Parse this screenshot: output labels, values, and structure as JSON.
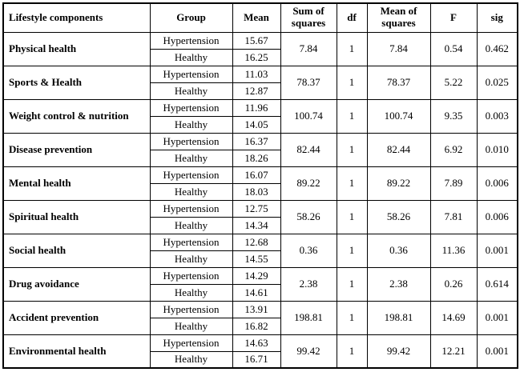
{
  "table": {
    "headers": [
      "Lifestyle components",
      "Group",
      "Mean",
      "Sum of squares",
      "df",
      "Mean of squares",
      "F",
      "sig"
    ],
    "rows": [
      {
        "component": "Physical health",
        "groups": [
          {
            "group": "Hypertension",
            "mean": "15.67"
          },
          {
            "group": "Healthy",
            "mean": "16.25"
          }
        ],
        "sum_of_squares": "7.84",
        "df": "1",
        "mean_of_squares": "7.84",
        "f": "0.54",
        "sig": "0.462"
      },
      {
        "component": "Sports & Health",
        "groups": [
          {
            "group": "Hypertension",
            "mean": "11.03"
          },
          {
            "group": "Healthy",
            "mean": "12.87"
          }
        ],
        "sum_of_squares": "78.37",
        "df": "1",
        "mean_of_squares": "78.37",
        "f": "5.22",
        "sig": "0.025"
      },
      {
        "component": "Weight control & nutrition",
        "groups": [
          {
            "group": "Hypertension",
            "mean": "11.96"
          },
          {
            "group": "Healthy",
            "mean": "14.05"
          }
        ],
        "sum_of_squares": "100.74",
        "df": "1",
        "mean_of_squares": "100.74",
        "f": "9.35",
        "sig": "0.003"
      },
      {
        "component": "Disease prevention",
        "groups": [
          {
            "group": "Hypertension",
            "mean": "16.37"
          },
          {
            "group": "Healthy",
            "mean": "18.26"
          }
        ],
        "sum_of_squares": "82.44",
        "df": "1",
        "mean_of_squares": "82.44",
        "f": "6.92",
        "sig": "0.010"
      },
      {
        "component": "Mental health",
        "groups": [
          {
            "group": "Hypertension",
            "mean": "16.07"
          },
          {
            "group": "Healthy",
            "mean": "18.03"
          }
        ],
        "sum_of_squares": "89.22",
        "df": "1",
        "mean_of_squares": "89.22",
        "f": "7.89",
        "sig": "0.006"
      },
      {
        "component": "Spiritual health",
        "groups": [
          {
            "group": "Hypertension",
            "mean": "12.75"
          },
          {
            "group": "Healthy",
            "mean": "14.34"
          }
        ],
        "sum_of_squares": "58.26",
        "df": "1",
        "mean_of_squares": "58.26",
        "f": "7.81",
        "sig": "0.006"
      },
      {
        "component": "Social health",
        "groups": [
          {
            "group": "Hypertension",
            "mean": "12.68"
          },
          {
            "group": "Healthy",
            "mean": "14.55"
          }
        ],
        "sum_of_squares": "0.36",
        "df": "1",
        "mean_of_squares": "0.36",
        "f": "11.36",
        "sig": "0.001"
      },
      {
        "component": "Drug avoidance",
        "groups": [
          {
            "group": "Hypertension",
            "mean": "14.29"
          },
          {
            "group": "Healthy",
            "mean": "14.61"
          }
        ],
        "sum_of_squares": "2.38",
        "df": "1",
        "mean_of_squares": "2.38",
        "f": "0.26",
        "sig": "0.614"
      },
      {
        "component": "Accident prevention",
        "groups": [
          {
            "group": "Hypertension",
            "mean": "13.91"
          },
          {
            "group": "Healthy",
            "mean": "16.82"
          }
        ],
        "sum_of_squares": "198.81",
        "df": "1",
        "mean_of_squares": "198.81",
        "f": "14.69",
        "sig": "0.001"
      },
      {
        "component": "Environmental health",
        "groups": [
          {
            "group": "Hypertension",
            "mean": "14.63"
          },
          {
            "group": "Healthy",
            "mean": "16.71"
          }
        ],
        "sum_of_squares": "99.42",
        "df": "1",
        "mean_of_squares": "99.42",
        "f": "12.21",
        "sig": "0.001"
      }
    ]
  }
}
